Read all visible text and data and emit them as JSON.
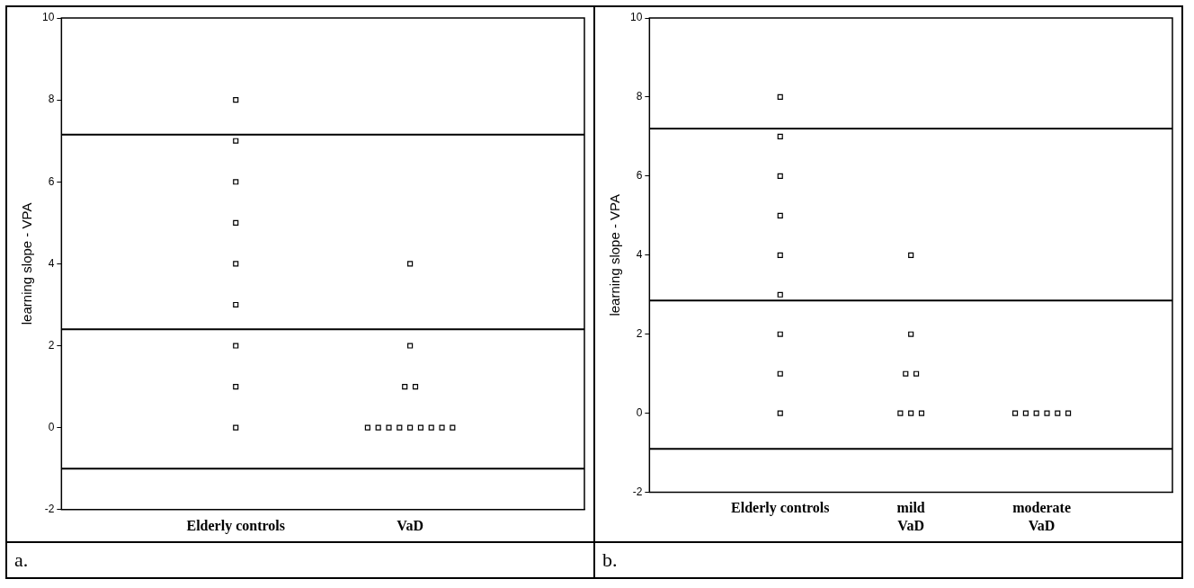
{
  "chart_data": [
    {
      "type": "scatter",
      "ylabel": "learning slope - VPA",
      "categories": [
        "Elderly controls",
        "VaD"
      ],
      "series": [
        {
          "color": "#000000",
          "x": [
            "Elderly controls",
            "Elderly controls",
            "Elderly controls",
            "Elderly controls",
            "Elderly controls",
            "Elderly controls",
            "Elderly controls",
            "Elderly controls",
            "Elderly controls",
            "VaD",
            "VaD",
            "VaD",
            "VaD",
            "VaD",
            "VaD",
            "VaD",
            "VaD",
            "VaD",
            "VaD",
            "VaD",
            "VaD",
            "VaD"
          ],
          "values": [
            8,
            7,
            6,
            5,
            4,
            3,
            2,
            1,
            0,
            4,
            2,
            1,
            1,
            0,
            0,
            0,
            0,
            0,
            0,
            0,
            0,
            0
          ]
        }
      ],
      "marker": "square",
      "ylim": [
        -2,
        10
      ],
      "yticks": [
        -2,
        0,
        2,
        4,
        6,
        8,
        10
      ],
      "grid": false,
      "legend": false,
      "ref_lines": [
        {
          "axis": "y",
          "value": 7.15,
          "color": "#000000"
        },
        {
          "axis": "y",
          "value": 2.4,
          "color": "#000000"
        },
        {
          "axis": "y",
          "value": -1,
          "color": "#000000"
        }
      ],
      "annotations": [
        "a."
      ]
    },
    {
      "type": "scatter",
      "ylabel": "learning slope - VPA",
      "categories": [
        "Elderly controls",
        "mild\nVaD",
        "moderate\nVaD"
      ],
      "series": [
        {
          "color": "#000000",
          "x": [
            "Elderly controls",
            "Elderly controls",
            "Elderly controls",
            "Elderly controls",
            "Elderly controls",
            "Elderly controls",
            "Elderly controls",
            "Elderly controls",
            "Elderly controls",
            "mild\nVaD",
            "mild\nVaD",
            "mild\nVaD",
            "mild\nVaD",
            "mild\nVaD",
            "mild\nVaD",
            "mild\nVaD",
            "moderate\nVaD",
            "moderate\nVaD",
            "moderate\nVaD",
            "moderate\nVaD",
            "moderate\nVaD",
            "moderate\nVaD"
          ],
          "values": [
            8,
            7,
            6,
            5,
            4,
            3,
            2,
            1,
            0,
            4,
            2,
            1,
            1,
            0,
            0,
            0,
            0,
            0,
            0,
            0,
            0,
            0
          ]
        }
      ],
      "marker": "square",
      "ylim": [
        -2,
        10
      ],
      "yticks": [
        -2,
        0,
        2,
        4,
        6,
        8,
        10
      ],
      "grid": false,
      "legend": false,
      "ref_lines": [
        {
          "axis": "y",
          "value": 7.2,
          "color": "#000000"
        },
        {
          "axis": "y",
          "value": 2.85,
          "color": "#000000"
        },
        {
          "axis": "y",
          "value": -0.9,
          "color": "#000000"
        }
      ],
      "annotations": [
        "b."
      ]
    }
  ]
}
